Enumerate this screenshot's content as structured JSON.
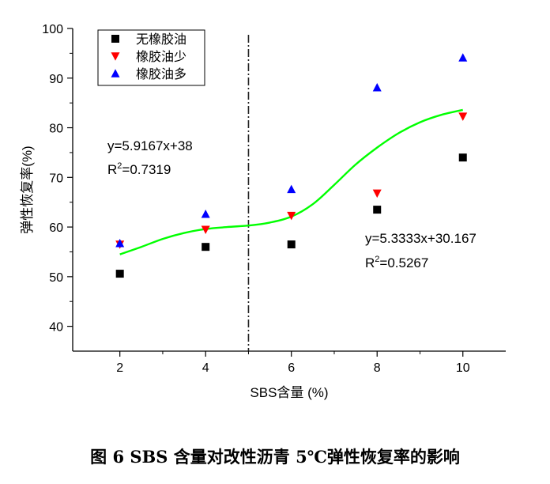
{
  "chart_data": {
    "type": "scatter",
    "xlabel": "SBS含量 (%)",
    "ylabel": "弹性恢复率(%)",
    "xlim": [
      0.9,
      11.0
    ],
    "ylim": [
      35,
      100
    ],
    "xticks": [
      2,
      4,
      6,
      8,
      10
    ],
    "yticks": [
      40,
      50,
      60,
      70,
      80,
      90,
      100
    ],
    "x": [
      2,
      4,
      6,
      8,
      10
    ],
    "series": [
      {
        "name": "无橡胶油",
        "marker": "square",
        "color": "#000000",
        "values": [
          50.6,
          56.0,
          56.5,
          63.5,
          74.0
        ]
      },
      {
        "name": "橡胶油少",
        "marker": "triangle-down",
        "color": "#ff0000",
        "values": [
          56.5,
          59.5,
          62.3,
          66.8,
          82.3
        ]
      },
      {
        "name": "橡胶油多",
        "marker": "triangle-up",
        "color": "#0000ff",
        "values": [
          56.7,
          62.6,
          67.6,
          88.1,
          94.1
        ]
      }
    ],
    "fit_curve": {
      "color": "#00ff00",
      "x": [
        2,
        2.5,
        3,
        3.5,
        4,
        4.5,
        5,
        5.5,
        6,
        6.5,
        7,
        7.5,
        8,
        8.5,
        9,
        9.5,
        10
      ],
      "y": [
        54.5,
        56.0,
        57.6,
        58.8,
        59.6,
        60.0,
        60.3,
        60.9,
        62.1,
        64.6,
        68.5,
        72.6,
        76.0,
        78.9,
        81.1,
        82.6,
        83.6
      ]
    },
    "divider_x": 5,
    "legend_position": "top-left",
    "grid": false,
    "annotations": [
      {
        "line1": "y=5.9167x+38",
        "r2_base": "R",
        "r2_sup": "2",
        "r2_value": "=0.7319"
      },
      {
        "line1": "y=5.3333x+30.167",
        "r2_base": "R",
        "r2_sup": "2",
        "r2_value": "=0.5267"
      }
    ]
  },
  "caption": "图  6   SBS 含量对改性沥青 5℃弹性恢复率的影响"
}
